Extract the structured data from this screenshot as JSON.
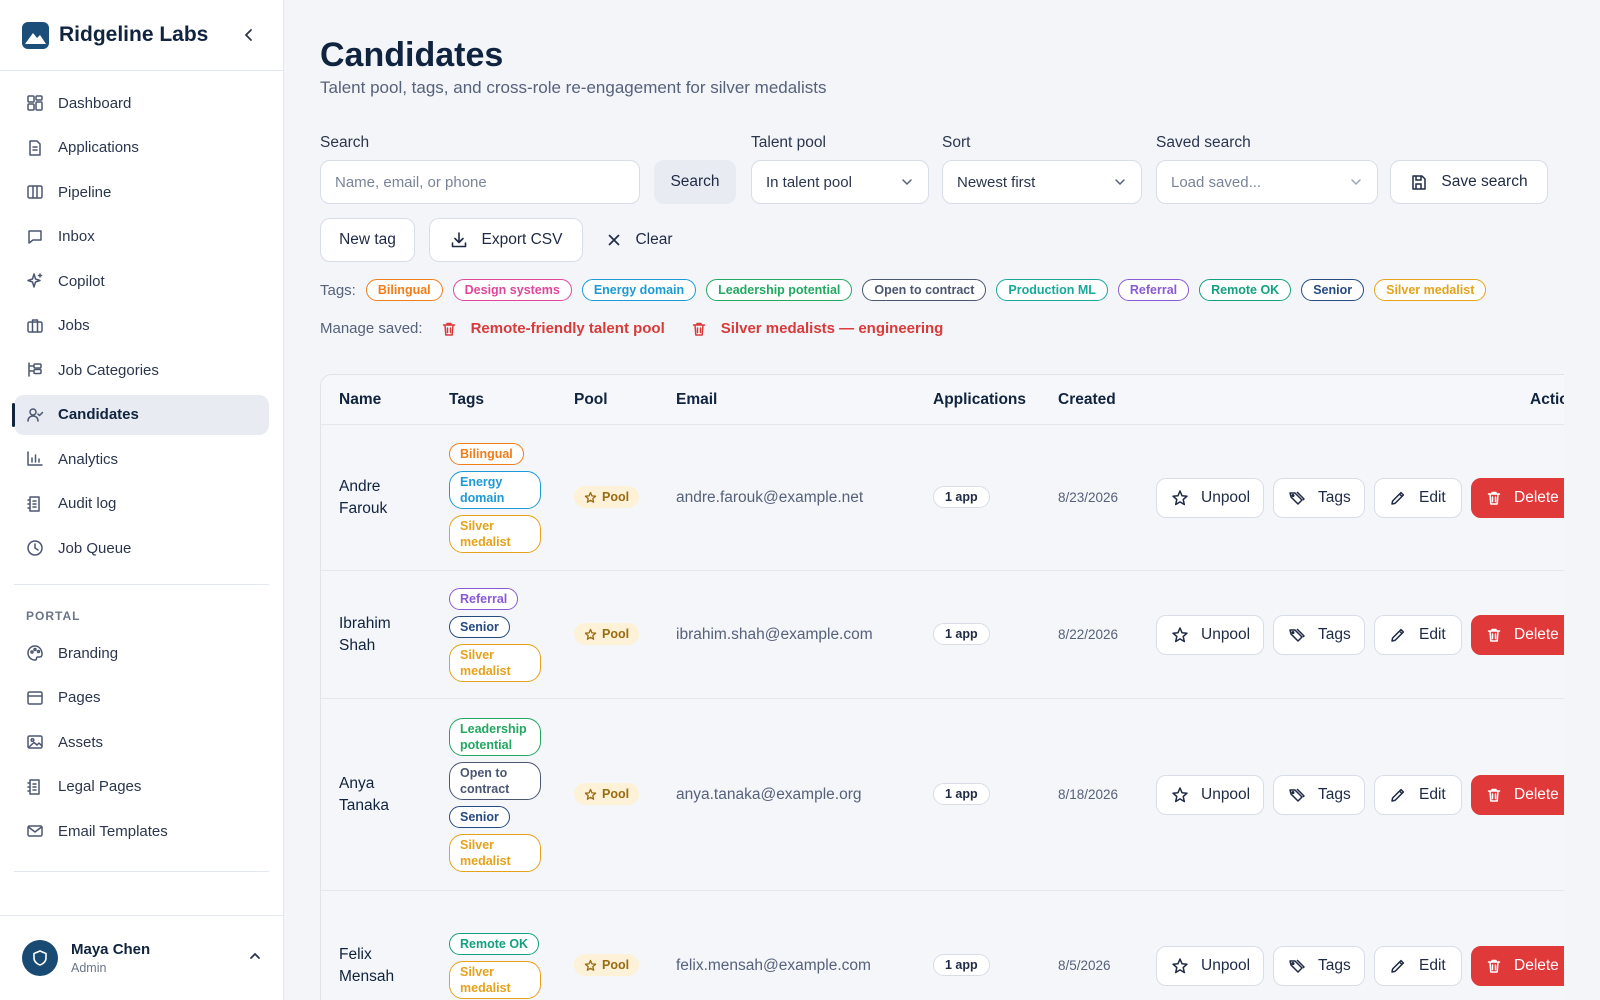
{
  "app": {
    "name": "Ridgeline Labs"
  },
  "nav_main": [
    {
      "label": "Dashboard",
      "icon": "dashboard-icon"
    },
    {
      "label": "Applications",
      "icon": "document-icon"
    },
    {
      "label": "Pipeline",
      "icon": "columns-icon"
    },
    {
      "label": "Inbox",
      "icon": "message-icon"
    },
    {
      "label": "Copilot",
      "icon": "sparkle-icon"
    },
    {
      "label": "Jobs",
      "icon": "briefcase-icon"
    },
    {
      "label": "Job Categories",
      "icon": "category-icon"
    },
    {
      "label": "Candidates",
      "icon": "user-icon",
      "active": true
    },
    {
      "label": "Analytics",
      "icon": "bar-chart-icon"
    },
    {
      "label": "Audit log",
      "icon": "log-icon"
    },
    {
      "label": "Job Queue",
      "icon": "clock-icon"
    }
  ],
  "portal": {
    "section_label": "PORTAL",
    "items": [
      {
        "label": "Branding",
        "icon": "palette-icon"
      },
      {
        "label": "Pages",
        "icon": "page-icon"
      },
      {
        "label": "Assets",
        "icon": "image-icon"
      },
      {
        "label": "Legal Pages",
        "icon": "log-icon"
      },
      {
        "label": "Email Templates",
        "icon": "mail-icon"
      }
    ]
  },
  "user": {
    "name": "Maya Chen",
    "role": "Admin"
  },
  "page": {
    "title": "Candidates",
    "subtitle": "Talent pool, tags, and cross-role re-engagement for silver medalists"
  },
  "filters": {
    "search_label": "Search",
    "search_placeholder": "Name, email, or phone",
    "search_button": "Search",
    "pool_label": "Talent pool",
    "pool_value": "In talent pool",
    "sort_label": "Sort",
    "sort_value": "Newest first",
    "saved_label": "Saved search",
    "saved_placeholder": "Load saved...",
    "save_button": "Save search"
  },
  "toolbar": {
    "new_tag": "New tag",
    "export": "Export CSV",
    "clear": "Clear"
  },
  "tags_label": "Tags:",
  "tags": [
    {
      "label": "Bilingual",
      "color": "#f07d1a"
    },
    {
      "label": "Design systems",
      "color": "#e0479a"
    },
    {
      "label": "Energy domain",
      "color": "#1c9ad6"
    },
    {
      "label": "Leadership potential",
      "color": "#21a861"
    },
    {
      "label": "Open to contract",
      "color": "#4b5670"
    },
    {
      "label": "Production ML",
      "color": "#17a89a"
    },
    {
      "label": "Referral",
      "color": "#8a5ad6"
    },
    {
      "label": "Remote OK",
      "color": "#13a07e"
    },
    {
      "label": "Senior",
      "color": "#264a82"
    },
    {
      "label": "Silver medalist",
      "color": "#e6a21a"
    }
  ],
  "manage_saved": {
    "label": "Manage saved:",
    "items": [
      "Remote-friendly talent pool",
      "Silver medalists — engineering"
    ]
  },
  "table": {
    "headers": {
      "name": "Name",
      "tags": "Tags",
      "pool": "Pool",
      "email": "Email",
      "applications": "Applications",
      "created": "Created",
      "actions": "Actions"
    },
    "rows": [
      {
        "first": "Andre",
        "last": "Farouk",
        "tags": [
          "Bilingual",
          "Energy domain",
          "Silver medalist"
        ],
        "pool": "Pool",
        "email": "andre.farouk@example.net",
        "apps": "1 app",
        "created": "8/23/2026"
      },
      {
        "first": "Ibrahim",
        "last": "Shah",
        "tags": [
          "Referral",
          "Senior",
          "Silver medalist"
        ],
        "pool": "Pool",
        "email": "ibrahim.shah@example.com",
        "apps": "1 app",
        "created": "8/22/2026"
      },
      {
        "first": "Anya",
        "last": "Tanaka",
        "tags": [
          "Leadership potential",
          "Open to contract",
          "Senior",
          "Silver medalist"
        ],
        "pool": "Pool",
        "email": "anya.tanaka@example.org",
        "apps": "1 app",
        "created": "8/18/2026"
      },
      {
        "first": "Felix",
        "last": "Mensah",
        "tags": [
          "Remote OK",
          "Silver medalist"
        ],
        "pool": "Pool",
        "email": "felix.mensah@example.com",
        "apps": "1 app",
        "created": "8/5/2026"
      }
    ],
    "actions": {
      "unpool": "Unpool",
      "tags": "Tags",
      "edit": "Edit",
      "delete": "Delete"
    }
  }
}
